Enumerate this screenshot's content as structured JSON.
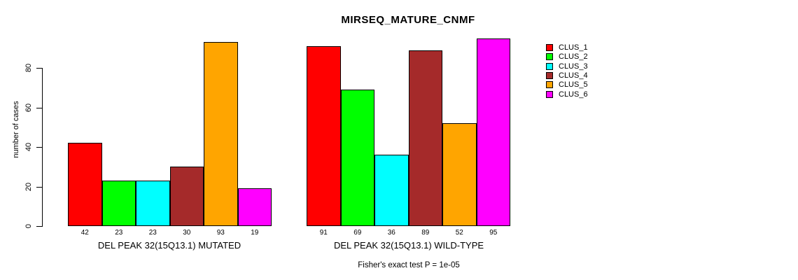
{
  "title": "MIRSEQ_MATURE_CNMF",
  "footer": "Fisher's exact test P = 1e-05",
  "colors": {
    "background": "#ffffff",
    "axis": "#000000",
    "text": "#000000"
  },
  "chart_data": {
    "type": "bar",
    "title": "MIRSEQ_MATURE_CNMF",
    "ylabel": "number of cases",
    "ylim": [
      0,
      80
    ],
    "yticks": [
      0,
      20,
      40,
      60,
      80
    ],
    "grid": false,
    "legend_position": "top-right",
    "legend": [
      {
        "label": "CLUS_1",
        "color": "#FF0000"
      },
      {
        "label": "CLUS_2",
        "color": "#00FF00"
      },
      {
        "label": "CLUS_3",
        "color": "#00FFFF"
      },
      {
        "label": "CLUS_4",
        "color": "#A52A2A"
      },
      {
        "label": "CLUS_5",
        "color": "#FFA500"
      },
      {
        "label": "CLUS_6",
        "color": "#FF00FF"
      }
    ],
    "series_colors": [
      "#FF0000",
      "#00FF00",
      "#00FFFF",
      "#A52A2A",
      "#FFA500",
      "#FF00FF"
    ],
    "groups": [
      {
        "label": "DEL PEAK 32(15Q13.1) MUTATED",
        "values": [
          42,
          23,
          23,
          30,
          93,
          19
        ]
      },
      {
        "label": "DEL PEAK 32(15Q13.1) WILD-TYPE",
        "values": [
          91,
          69,
          36,
          89,
          52,
          95
        ]
      }
    ],
    "annotation": "Fisher's exact test P = 1e-05"
  }
}
